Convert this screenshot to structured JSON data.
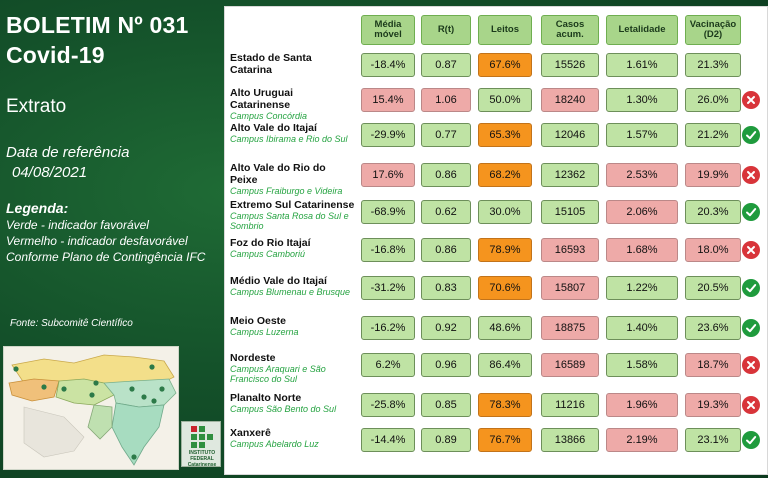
{
  "title_line1": "BOLETIM Nº 031",
  "title_line2": "Covid-19",
  "subtitle": "Extrato",
  "ref_label": "Data de referência",
  "ref_date": "04/08/2021",
  "legend": {
    "heading": "Legenda:",
    "green": "Verde - indicador favorável",
    "red": "Vermelho - indicador desfavorável",
    "plan": "Conforme Plano de Contingência IFC"
  },
  "source": "Fonte: Subcomitê Científico",
  "logo_text": [
    "INSTITUTO",
    "FEDERAL",
    "Catarinense"
  ],
  "colors": {
    "favorable": "#bfe3a4",
    "unfavorable": "#eeaaa8",
    "alert": "#f5941e",
    "ok_icon": "#1f9b3d",
    "bad_icon": "#d8343a"
  },
  "headers": [
    "Média móvel",
    "R(t)",
    "Leitos",
    "Casos acum.",
    "Letalidade",
    "Vacinação (D2)"
  ],
  "rows": [
    {
      "name": "Estado de Santa Catarina",
      "campus": "",
      "media": "-18.4%",
      "rt": "0.87",
      "leitos": "67.6%",
      "casos": "15526",
      "letal": "1.61%",
      "vac": "21.3%",
      "c": [
        "g",
        "g",
        "o",
        "g",
        "g",
        "g"
      ],
      "status": ""
    },
    {
      "name": "Alto Uruguai Catarinense",
      "campus": "Campus Concórdia",
      "media": "15.4%",
      "rt": "1.06",
      "leitos": "50.0%",
      "casos": "18240",
      "letal": "1.30%",
      "vac": "26.0%",
      "c": [
        "r",
        "r",
        "g",
        "r",
        "g",
        "g"
      ],
      "status": "bad"
    },
    {
      "name": "Alto Vale do Itajaí",
      "campus": "Campus Ibirama e Rio do Sul",
      "media": "-29.9%",
      "rt": "0.77",
      "leitos": "65.3%",
      "casos": "12046",
      "letal": "1.57%",
      "vac": "21.2%",
      "c": [
        "g",
        "g",
        "o",
        "g",
        "g",
        "g"
      ],
      "status": "ok"
    },
    {
      "name": "Alto Vale do Rio do Peixe",
      "campus": "Campus Fraiburgo e Videira",
      "media": "17.6%",
      "rt": "0.86",
      "leitos": "68.2%",
      "casos": "12362",
      "letal": "2.53%",
      "vac": "19.9%",
      "c": [
        "r",
        "g",
        "o",
        "g",
        "r",
        "r"
      ],
      "status": "bad"
    },
    {
      "name": "Extremo Sul Catarinense",
      "campus": "Campus Santa Rosa do Sul e Sombrio",
      "media": "-68.9%",
      "rt": "0.62",
      "leitos": "30.0%",
      "casos": "15105",
      "letal": "2.06%",
      "vac": "20.3%",
      "c": [
        "g",
        "g",
        "g",
        "g",
        "r",
        "g"
      ],
      "status": "ok"
    },
    {
      "name": "Foz do Rio Itajaí",
      "campus": "Campus Camboriú",
      "media": "-16.8%",
      "rt": "0.86",
      "leitos": "78.9%",
      "casos": "16593",
      "letal": "1.68%",
      "vac": "18.0%",
      "c": [
        "g",
        "g",
        "o",
        "r",
        "r",
        "r"
      ],
      "status": "bad"
    },
    {
      "name": "Médio Vale do Itajaí",
      "campus": "Campus Blumenau e Brusque",
      "media": "-31.2%",
      "rt": "0.83",
      "leitos": "70.6%",
      "casos": "15807",
      "letal": "1.22%",
      "vac": "20.5%",
      "c": [
        "g",
        "g",
        "o",
        "r",
        "g",
        "g"
      ],
      "status": "ok"
    },
    {
      "name": "Meio Oeste",
      "campus": "Campus Luzerna",
      "media": "-16.2%",
      "rt": "0.92",
      "leitos": "48.6%",
      "casos": "18875",
      "letal": "1.40%",
      "vac": "23.6%",
      "c": [
        "g",
        "g",
        "g",
        "r",
        "g",
        "g"
      ],
      "status": "ok"
    },
    {
      "name": "Nordeste",
      "campus": "Campus Araquari e São Francisco do Sul",
      "media": "6.2%",
      "rt": "0.96",
      "leitos": "86.4%",
      "casos": "16589",
      "letal": "1.58%",
      "vac": "18.7%",
      "c": [
        "g",
        "g",
        "g",
        "r",
        "g",
        "r"
      ],
      "status": "bad"
    },
    {
      "name": "Planalto Norte",
      "campus": "Campus São Bento do Sul",
      "media": "-25.8%",
      "rt": "0.85",
      "leitos": "78.3%",
      "casos": "11216",
      "letal": "1.96%",
      "vac": "19.3%",
      "c": [
        "g",
        "g",
        "o",
        "g",
        "r",
        "r"
      ],
      "status": "bad"
    },
    {
      "name": "Xanxerê",
      "campus": "Campus Abelardo Luz",
      "media": "-14.4%",
      "rt": "0.89",
      "leitos": "76.7%",
      "casos": "13866",
      "letal": "2.19%",
      "vac": "23.1%",
      "c": [
        "g",
        "g",
        "o",
        "g",
        "r",
        "g"
      ],
      "status": "ok"
    }
  ]
}
